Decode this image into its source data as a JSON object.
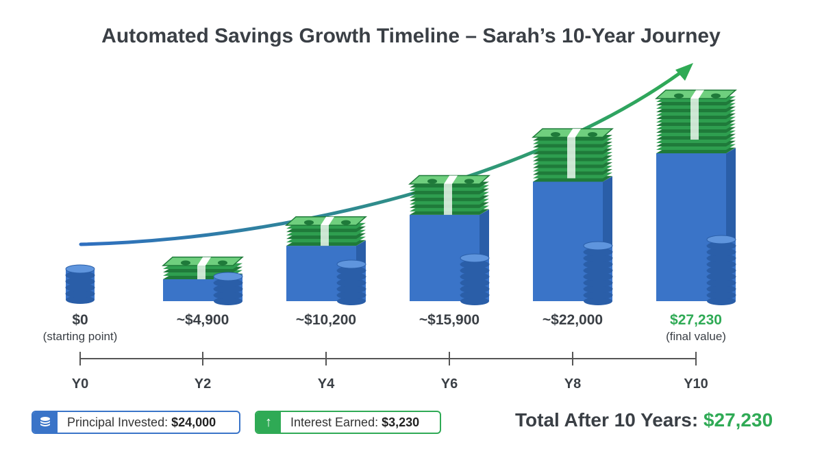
{
  "chart_data": {
    "type": "bar",
    "title": "Automated Savings Growth Timeline – Sarah’s 10-Year Journey",
    "categories": [
      "Y0",
      "Y2",
      "Y4",
      "Y6",
      "Y8",
      "Y10"
    ],
    "values": [
      0,
      4900,
      10200,
      15900,
      22000,
      27230
    ],
    "value_labels": [
      "$0",
      "~$4,900",
      "~$10,200",
      "~$15,900",
      "~$22,000",
      "$27,230"
    ],
    "sub_labels": [
      "(starting point)",
      "",
      "",
      "",
      "",
      "(final value)"
    ],
    "highlight_color": "#2faa55",
    "principal_color": "#3a74c8",
    "cash_color": "#2e9e4f",
    "trend_arrow": true
  },
  "legend": {
    "principal_label": "Principal Invested:",
    "principal_value": "$24,000",
    "principal_icon": "coin-stack-icon",
    "interest_label": "Interest Earned:",
    "interest_value": "$3,230",
    "interest_icon": "up-arrow-icon"
  },
  "total": {
    "label": "Total After 10 Years:",
    "value": "$27,230"
  }
}
